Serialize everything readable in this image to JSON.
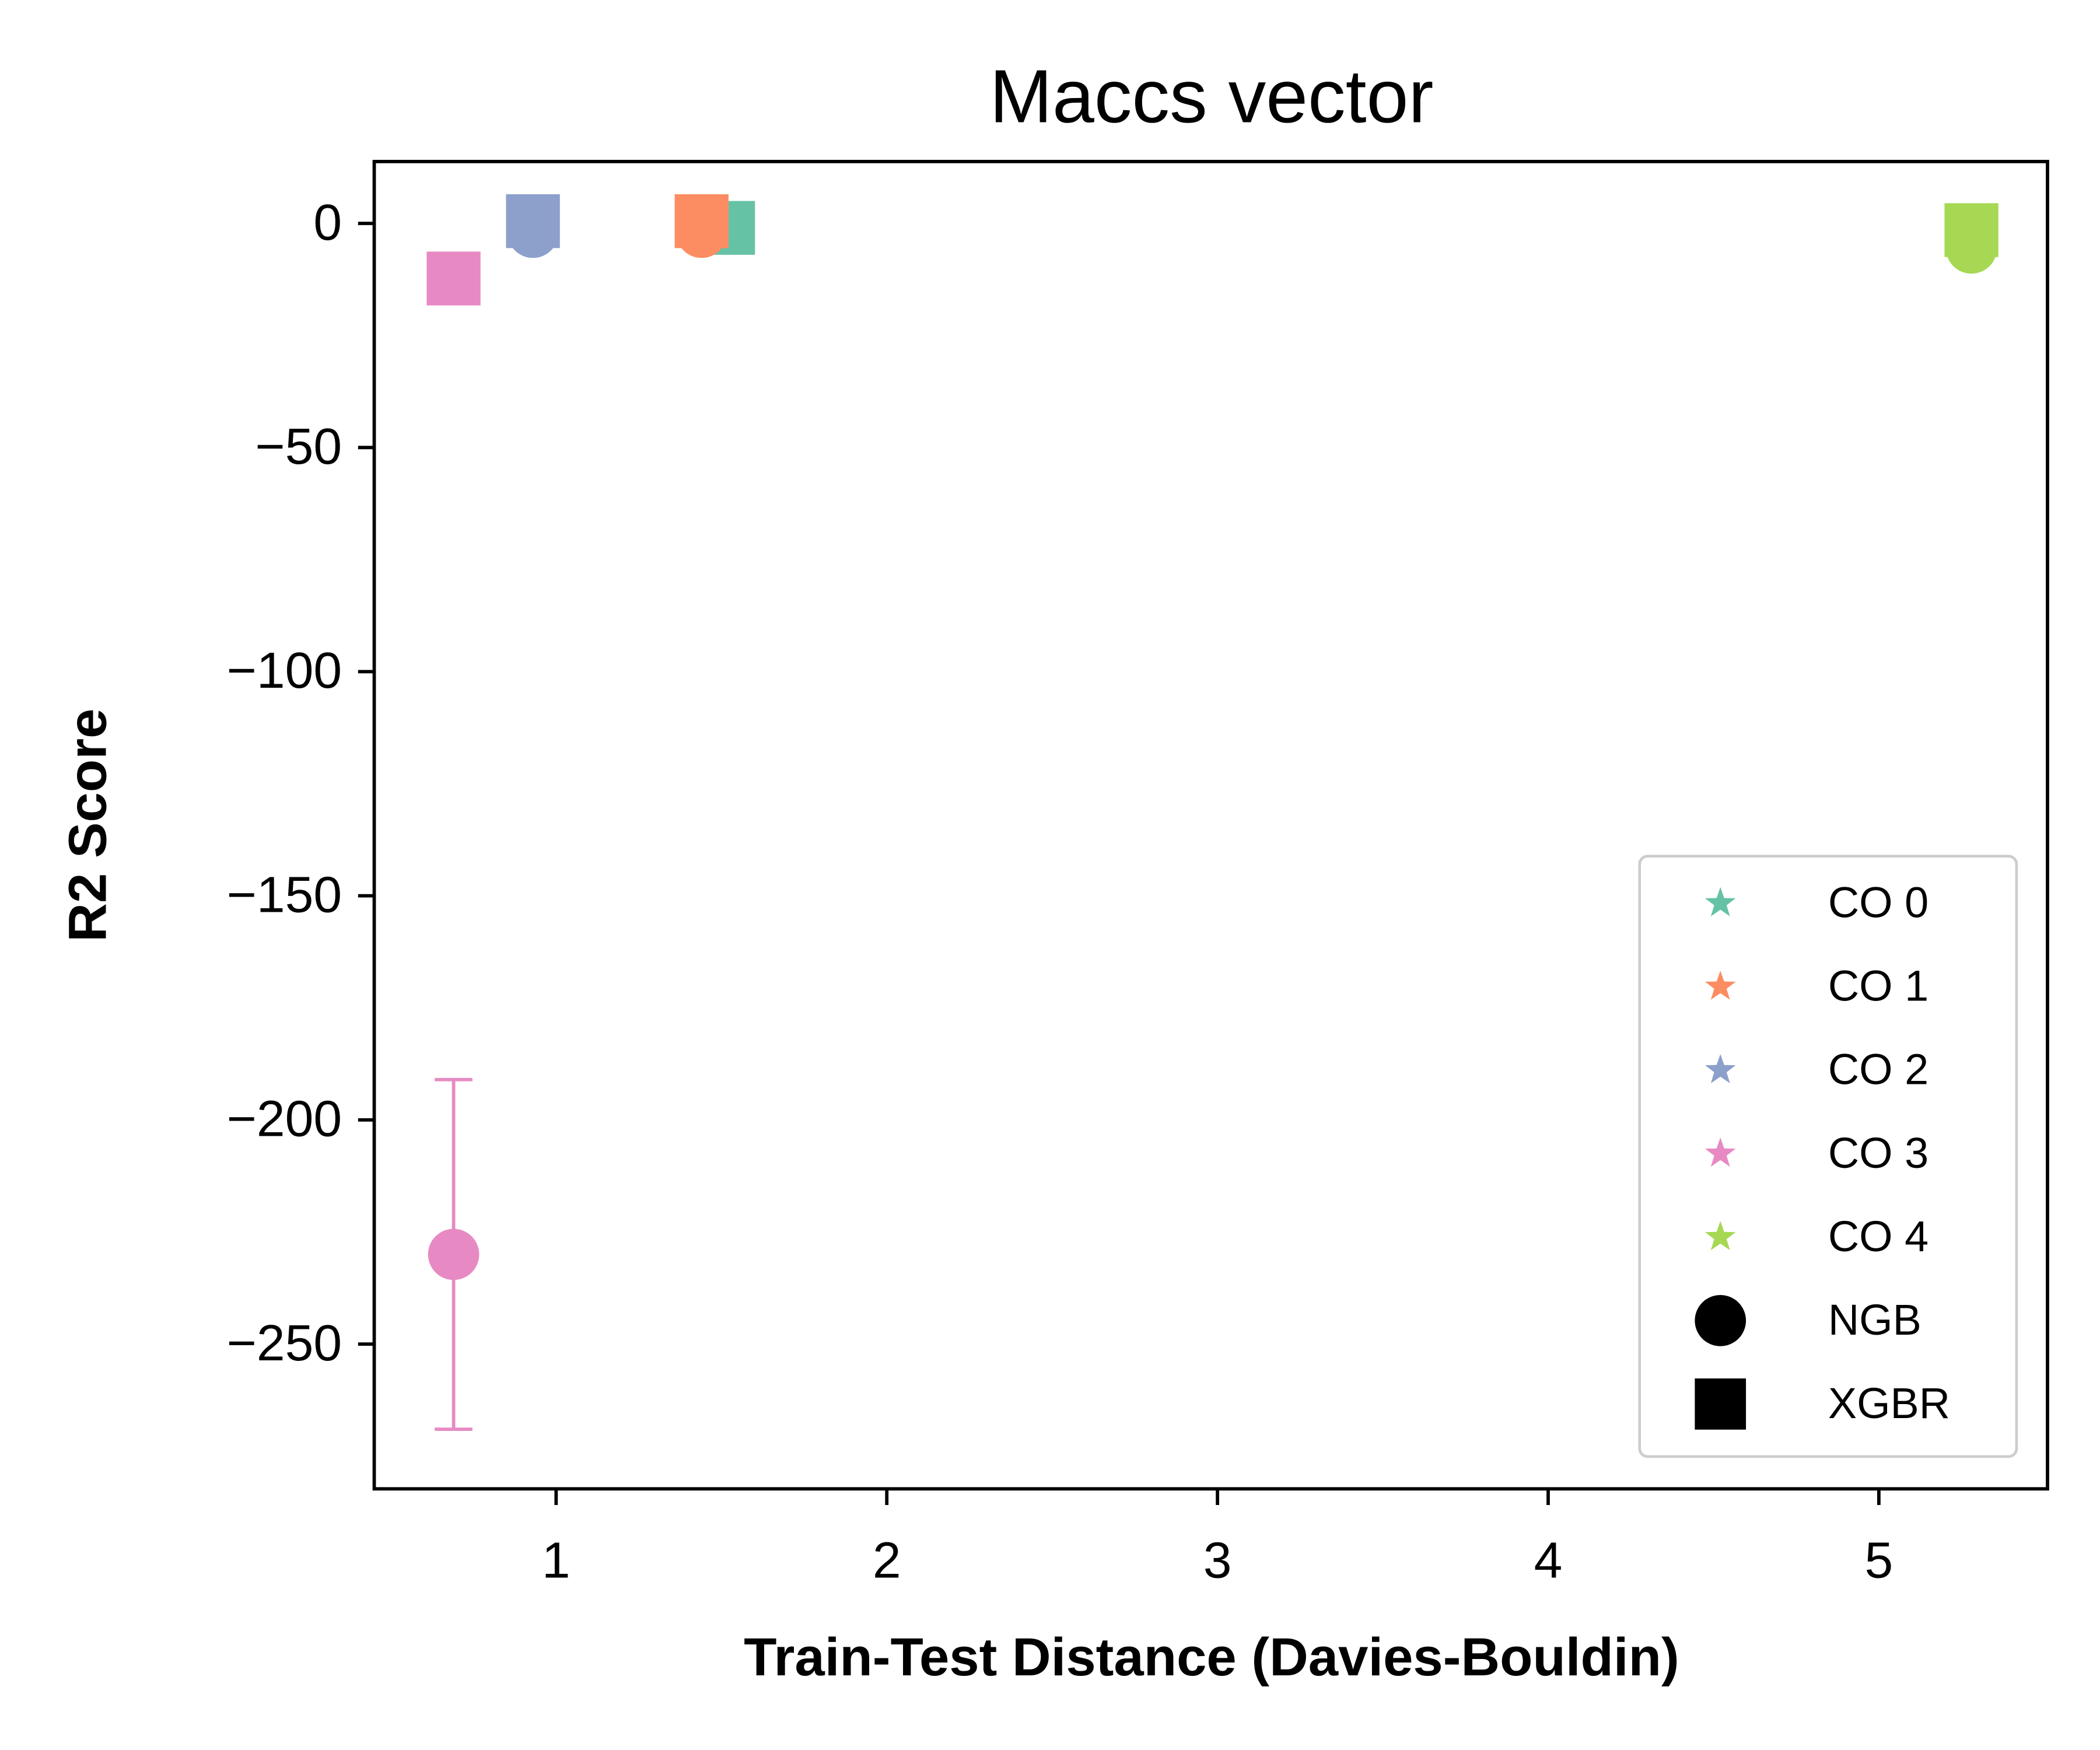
{
  "chart_data": {
    "type": "scatter",
    "title": "Maccs vector",
    "x_label": "Train-Test Distance (Davies-Bouldin)",
    "y_label": "R2 Score",
    "xlim": [
      0.45,
      5.51
    ],
    "ylim": [
      -282.3,
      13.8
    ],
    "xticks": [
      1,
      2,
      3,
      4,
      5
    ],
    "yticks": [
      0,
      {
        "value": -50,
        "label": "−50"
      },
      {
        "value": -100,
        "label": "−100"
      },
      {
        "value": -150,
        "label": "−150"
      },
      {
        "value": -200,
        "label": "−200"
      },
      {
        "value": -250,
        "label": "−250"
      }
    ],
    "groups": [
      {
        "name": "CO 0",
        "color": "#66c2a5"
      },
      {
        "name": "CO 1",
        "color": "#fc8d62"
      },
      {
        "name": "CO 2",
        "color": "#8da0cb"
      },
      {
        "name": "CO 3",
        "color": "#e78ac3"
      },
      {
        "name": "CO 4",
        "color": "#a6d854"
      }
    ],
    "series": [
      {
        "name": "NGB",
        "marker": "circle",
        "color": "#000000",
        "x": [
          1.52,
          1.44,
          0.93,
          0.69,
          5.28
        ],
        "values": [
          -1,
          -2,
          -2,
          -230,
          -5.5
        ],
        "errors": [
          null,
          null,
          null,
          39,
          null
        ]
      },
      {
        "name": "XGBR",
        "marker": "square",
        "color": "#000000",
        "x": [
          1.52,
          1.44,
          0.93,
          0.69,
          5.28
        ],
        "values": [
          -1,
          0.5,
          0.5,
          -12.3,
          -1.5
        ],
        "errors": [
          null,
          null,
          null,
          null,
          null
        ]
      }
    ],
    "legend": "lower right"
  }
}
